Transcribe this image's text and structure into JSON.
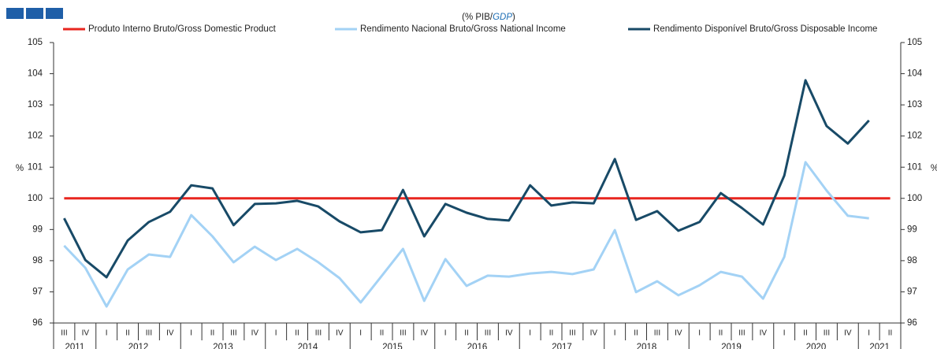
{
  "chart_data": {
    "type": "line",
    "title": [
      "(% PIB/",
      "GDP",
      ")"
    ],
    "ylabel": "%",
    "y2label": "%",
    "categories": [
      "III",
      "IV",
      "I",
      "II",
      "III",
      "IV",
      "I",
      "II",
      "III",
      "IV",
      "I",
      "II",
      "III",
      "IV",
      "I",
      "II",
      "III",
      "IV",
      "I",
      "II",
      "III",
      "IV",
      "I",
      "II",
      "III",
      "IV",
      "I",
      "II",
      "III",
      "IV",
      "I",
      "II",
      "III",
      "IV",
      "I",
      "II",
      "III",
      "IV",
      "I",
      "II"
    ],
    "years": [
      "2011",
      "2012",
      "2013",
      "2014",
      "2015",
      "2016",
      "2017",
      "2018",
      "2019",
      "2020",
      "2021"
    ],
    "ylim": [
      96,
      105
    ],
    "yticks": [
      96,
      97,
      98,
      99,
      100,
      101,
      102,
      103,
      104,
      105
    ],
    "y2lim": [
      96,
      105
    ],
    "y2ticks": [
      96,
      97,
      98,
      99,
      100,
      101,
      102,
      103,
      104,
      105
    ],
    "series": [
      {
        "name": "Produto Interno Bruto/Gross Domestic Product",
        "color": "#e8261f",
        "values": [
          100,
          100,
          100,
          100,
          100,
          100,
          100,
          100,
          100,
          100,
          100,
          100,
          100,
          100,
          100,
          100,
          100,
          100,
          100,
          100,
          100,
          100,
          100,
          100,
          100,
          100,
          100,
          100,
          100,
          100,
          100,
          100,
          100,
          100,
          100,
          100,
          100,
          100,
          100,
          100
        ]
      },
      {
        "name": "Rendimento Nacional Bruto/Gross National Income",
        "color": "#a3d2f5",
        "values": [
          98.48,
          97.77,
          96.53,
          97.72,
          98.2,
          98.12,
          99.46,
          98.78,
          97.95,
          98.45,
          98.02,
          98.38,
          97.95,
          97.44,
          96.66,
          97.52,
          98.38,
          96.71,
          98.05,
          97.19,
          97.52,
          97.49,
          97.59,
          97.64,
          97.57,
          97.72,
          98.98,
          96.99,
          97.34,
          96.89,
          97.21,
          97.64,
          97.49,
          96.78,
          98.12,
          101.16,
          100.25,
          99.44,
          99.36,
          null
        ]
      },
      {
        "name": "Rendimento Disponível Bruto/Gross Disposable Income",
        "color": "#184a67",
        "values": [
          99.36,
          98.02,
          97.47,
          98.65,
          99.24,
          99.57,
          100.42,
          100.32,
          99.14,
          99.82,
          99.84,
          99.92,
          99.74,
          99.26,
          98.91,
          98.98,
          100.27,
          98.78,
          99.82,
          99.54,
          99.34,
          99.29,
          100.42,
          99.77,
          99.87,
          99.84,
          101.26,
          99.31,
          99.59,
          98.96,
          99.24,
          100.17,
          99.69,
          99.16,
          100.73,
          103.79,
          102.32,
          101.76,
          102.5,
          null
        ]
      }
    ]
  }
}
